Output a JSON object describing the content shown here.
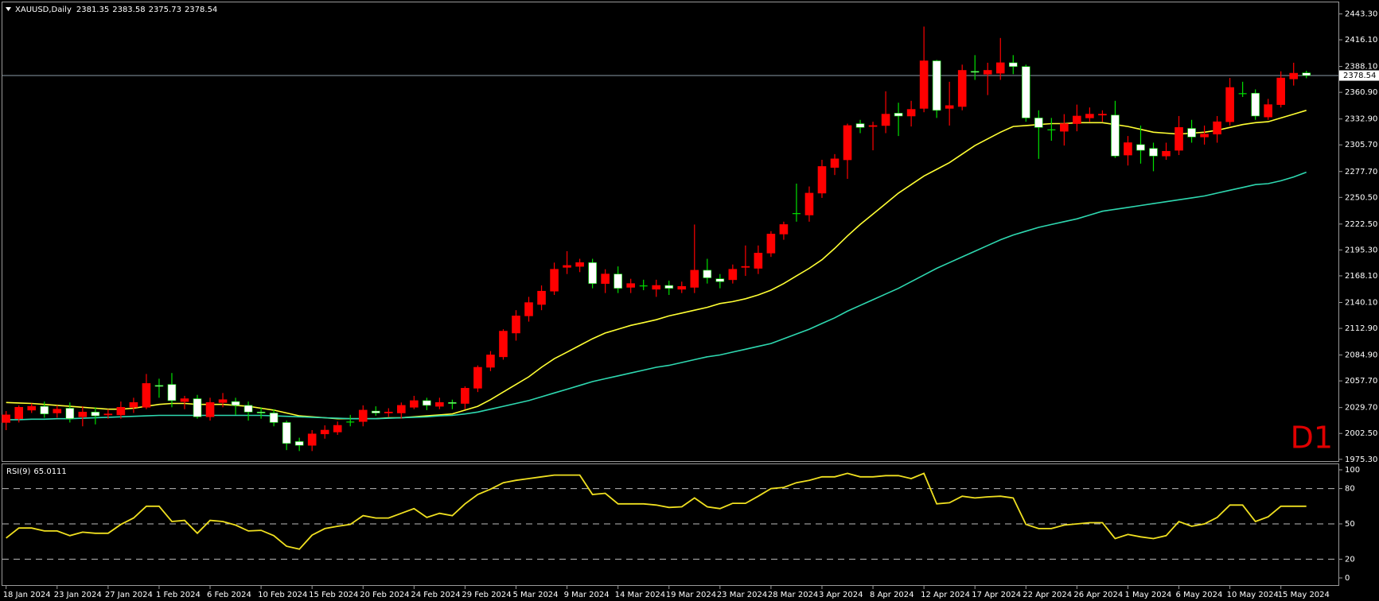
{
  "chart_data": [
    {
      "type": "candlestick",
      "title": "XAUUSD,Daily",
      "timeframe_label": "D1",
      "categories": [
        "18 Jan 2024",
        null,
        null,
        null,
        "23 Jan 2024",
        null,
        null,
        null,
        "27 Jan 2024",
        null,
        null,
        null,
        "1 Feb 2024",
        null,
        null,
        null,
        "6 Feb 2024",
        null,
        null,
        null,
        "10 Feb 2024",
        null,
        null,
        null,
        "15 Feb 2024",
        null,
        null,
        null,
        "20 Feb 2024",
        null,
        null,
        null,
        "24 Feb 2024",
        null,
        null,
        null,
        "29 Feb 2024",
        null,
        null,
        null,
        "5 Mar 2024",
        null,
        null,
        null,
        "9 Mar 2024",
        null,
        null,
        null,
        "14 Mar 2024",
        null,
        null,
        null,
        "19 Mar 2024",
        null,
        null,
        null,
        "23 Mar 2024",
        null,
        null,
        null,
        "28 Mar 2024",
        null,
        null,
        null,
        "3 Apr 2024",
        null,
        null,
        null,
        "8 Apr 2024",
        null,
        null,
        null,
        "12 Apr 2024",
        null,
        null,
        null,
        "17 Apr 2024",
        null,
        null,
        null,
        "22 Apr 2024",
        null,
        null,
        null,
        "26 Apr 2024",
        null,
        null,
        null,
        "1 May 2024",
        null,
        null,
        null,
        "6 May 2024",
        null,
        null,
        null,
        "10 May 2024",
        null,
        null,
        null,
        "15 May 2024",
        null,
        null
      ],
      "open": [
        2014,
        2018,
        2027,
        2031,
        2024,
        2029,
        2020,
        2025,
        2022,
        2022,
        2030,
        2030,
        2053,
        2054,
        2036,
        2039,
        2020,
        2035,
        2036,
        2032,
        2025,
        2024,
        2014,
        1994,
        1990,
        2002,
        2004,
        2015,
        2015,
        2026,
        2024,
        2024,
        2030,
        2037,
        2031,
        2035,
        2034,
        2050,
        2072,
        2083,
        2108,
        2126,
        2138,
        2152,
        2177,
        2178,
        2182,
        2160,
        2170,
        2156,
        2158,
        2154,
        2158,
        2154,
        2156,
        2174,
        2165,
        2164,
        2177,
        2176,
        2192,
        2212,
        2234,
        2232,
        2255,
        2282,
        2290,
        2328,
        2325,
        2326,
        2339,
        2336,
        2344,
        2394,
        2344,
        2346,
        2383,
        2380,
        2381,
        2392,
        2388,
        2334,
        2322,
        2320,
        2328,
        2334,
        2337,
        2337,
        2295,
        2306,
        2302,
        2294,
        2300,
        2323,
        2314,
        2317,
        2330,
        2360,
        2360,
        2335,
        2348,
        2375,
        2381.35
      ],
      "high": [
        2026,
        2032,
        2034,
        2036,
        2032,
        2035,
        2031,
        2030,
        2028,
        2036,
        2040,
        2065,
        2060,
        2066,
        2042,
        2043,
        2040,
        2045,
        2040,
        2036,
        2030,
        2028,
        2016,
        1998,
        2006,
        2011,
        2015,
        2022,
        2032,
        2031,
        2029,
        2035,
        2042,
        2040,
        2040,
        2038,
        2052,
        2074,
        2089,
        2112,
        2132,
        2146,
        2158,
        2182,
        2194,
        2186,
        2186,
        2175,
        2178,
        2165,
        2164,
        2164,
        2163,
        2162,
        2222,
        2186,
        2170,
        2180,
        2200,
        2200,
        2215,
        2225,
        2265,
        2262,
        2290,
        2296,
        2328,
        2332,
        2330,
        2362,
        2350,
        2352,
        2430,
        2395,
        2372,
        2390,
        2400,
        2392,
        2418,
        2400,
        2390,
        2342,
        2334,
        2338,
        2348,
        2345,
        2342,
        2352,
        2315,
        2326,
        2308,
        2308,
        2336,
        2332,
        2326,
        2336,
        2376,
        2372,
        2364,
        2354,
        2383,
        2392,
        2383.58
      ],
      "low": [
        2006,
        2014,
        2024,
        2019,
        2019,
        2014,
        2010,
        2012,
        2018,
        2018,
        2024,
        2028,
        2040,
        2030,
        2028,
        2018,
        2016,
        2030,
        2022,
        2016,
        2018,
        2010,
        1985,
        1984,
        1984,
        1997,
        2001,
        2010,
        2010,
        2021,
        2020,
        2018,
        2028,
        2027,
        2028,
        2028,
        2028,
        2046,
        2068,
        2080,
        2100,
        2120,
        2132,
        2148,
        2170,
        2172,
        2155,
        2150,
        2150,
        2150,
        2153,
        2146,
        2148,
        2150,
        2150,
        2160,
        2155,
        2160,
        2168,
        2170,
        2188,
        2206,
        2225,
        2225,
        2250,
        2274,
        2270,
        2318,
        2300,
        2318,
        2315,
        2325,
        2340,
        2334,
        2326,
        2342,
        2374,
        2358,
        2374,
        2380,
        2330,
        2291,
        2310,
        2305,
        2320,
        2330,
        2330,
        2292,
        2284,
        2286,
        2278,
        2290,
        2295,
        2308,
        2306,
        2308,
        2326,
        2356,
        2332,
        2332,
        2345,
        2368,
        2375.73
      ],
      "close": [
        2022,
        2030,
        2031,
        2023,
        2028,
        2018,
        2025,
        2021,
        2023,
        2030,
        2035,
        2055,
        2052,
        2037,
        2039,
        2020,
        2035,
        2038,
        2032,
        2025,
        2024,
        2014,
        1992,
        1990,
        2002,
        2006,
        2011,
        2015,
        2027,
        2024,
        2025,
        2032,
        2037,
        2032,
        2035,
        2034,
        2050,
        2072,
        2085,
        2110,
        2126,
        2140,
        2152,
        2175,
        2179,
        2182,
        2160,
        2170,
        2155,
        2160,
        2158,
        2158,
        2155,
        2157,
        2174,
        2166,
        2162,
        2175,
        2178,
        2192,
        2212,
        2222,
        2234,
        2255,
        2283,
        2291,
        2326,
        2324,
        2326,
        2338,
        2336,
        2343,
        2394,
        2342,
        2347,
        2384,
        2382,
        2384,
        2392,
        2388,
        2334,
        2324,
        2322,
        2328,
        2336,
        2338,
        2338,
        2294,
        2308,
        2300,
        2294,
        2299,
        2324,
        2314,
        2317,
        2330,
        2366,
        2360,
        2336,
        2348,
        2376,
        2381,
        2378.54
      ],
      "up_color": "#ff0000",
      "down_color": "#ffffff",
      "down_wick_color": "#00e000",
      "price_line_color": "#8a9aa8",
      "moving_averages": [
        {
          "color": "#ffff33",
          "values": [
            2035,
            2034.5,
            2034,
            2033,
            2032,
            2031,
            2030,
            2029,
            2028,
            2028,
            2029,
            2031,
            2033,
            2034,
            2034,
            2033,
            2033,
            2033,
            2032,
            2031,
            2029,
            2027,
            2024,
            2021,
            2020,
            2019,
            2018,
            2018,
            2018,
            2018,
            2019,
            2019,
            2020,
            2021,
            2022,
            2023,
            2027,
            2031,
            2038,
            2046,
            2054,
            2062,
            2072,
            2081,
            2088,
            2095,
            2102,
            2108,
            2112,
            2116,
            2119,
            2122,
            2126,
            2129,
            2132,
            2135,
            2139,
            2141,
            2144,
            2148,
            2153,
            2160,
            2168,
            2176,
            2185,
            2197,
            2210,
            2222,
            2233,
            2244,
            2255,
            2264,
            2273,
            2280,
            2287,
            2296,
            2305,
            2312,
            2319,
            2325,
            2326,
            2327,
            2328,
            2328,
            2329,
            2329,
            2329,
            2327,
            2325,
            2322,
            2319,
            2318,
            2317,
            2318,
            2319,
            2321,
            2324,
            2327,
            2329,
            2330,
            2334,
            2338,
            2342
          ]
        },
        {
          "color": "#2ed8b0",
          "values": [
            2017,
            2017,
            2017.5,
            2017.5,
            2018,
            2018,
            2018.5,
            2019,
            2019.5,
            2020,
            2020.5,
            2021,
            2021.5,
            2021.5,
            2021.5,
            2021.5,
            2021.5,
            2021.5,
            2021.5,
            2021.5,
            2021.5,
            2021,
            2020.5,
            2020,
            2019.5,
            2019,
            2018.5,
            2018,
            2018,
            2018,
            2018.5,
            2019,
            2019.5,
            2020,
            2021,
            2021.5,
            2023,
            2025,
            2028,
            2031,
            2034,
            2037,
            2041,
            2045,
            2049,
            2053,
            2057,
            2060,
            2063,
            2066,
            2069,
            2072,
            2074,
            2077,
            2080,
            2083,
            2085,
            2088,
            2091,
            2094,
            2097,
            2102,
            2107,
            2112,
            2118,
            2124,
            2131,
            2137,
            2143,
            2149,
            2155,
            2162,
            2169,
            2176,
            2182,
            2188,
            2194,
            2200,
            2206,
            2211,
            2215,
            2219,
            2222,
            2225,
            2228,
            2232,
            2236,
            2238,
            2240,
            2242,
            2244,
            2246,
            2248,
            2250,
            2252,
            2255,
            2258,
            2261,
            2264,
            2265,
            2268,
            2272,
            2277
          ]
        }
      ],
      "ylim": [
        1973.45,
        2456.25
      ],
      "yticks": [
        {
          "value": 2443.3,
          "label": "2443.30"
        },
        {
          "value": 2416.1,
          "label": "2416.10"
        },
        {
          "value": 2388.1,
          "label": "2388.10"
        },
        {
          "value": 2360.9,
          "label": "2360.90"
        },
        {
          "value": 2332.9,
          "label": "2332.90"
        },
        {
          "value": 2305.7,
          "label": "2305.70"
        },
        {
          "value": 2277.7,
          "label": "2277.70"
        },
        {
          "value": 2250.5,
          "label": "2250.50"
        },
        {
          "value": 2222.5,
          "label": "2222.50"
        },
        {
          "value": 2195.3,
          "label": "2195.30"
        },
        {
          "value": 2168.1,
          "label": "2168.10"
        },
        {
          "value": 2140.1,
          "label": "2140.10"
        },
        {
          "value": 2112.9,
          "label": "2112.90"
        },
        {
          "value": 2084.9,
          "label": "2084.90"
        },
        {
          "value": 2057.7,
          "label": "2057.70"
        },
        {
          "value": 2029.7,
          "label": "2029.70"
        },
        {
          "value": 2002.5,
          "label": "2002.50"
        },
        {
          "value": 1975.3,
          "label": "1975.30"
        }
      ]
    },
    {
      "type": "line",
      "title": "RSI(9)",
      "color": "#f0e020",
      "values": [
        38,
        46.5,
        46.5,
        44,
        44,
        40,
        43,
        42,
        42,
        49.5,
        55,
        65,
        65,
        52,
        53,
        42,
        53,
        52,
        49,
        44,
        44.5,
        40,
        31,
        28.5,
        40.5,
        46,
        48,
        49.5,
        57,
        55,
        55,
        59,
        63,
        55.5,
        59,
        57,
        67,
        75,
        79.5,
        85,
        87,
        88.5,
        90,
        91.5,
        91.5,
        91.5,
        75,
        76,
        67,
        67,
        67,
        66,
        64,
        64.5,
        72,
        64.5,
        63,
        67.5,
        67.5,
        73.5,
        80,
        81,
        85,
        87,
        90,
        90,
        93,
        90,
        90,
        91,
        91,
        88.5,
        93,
        67,
        68,
        73.5,
        72,
        73,
        73.5,
        72,
        49.5,
        46,
        46,
        49,
        50,
        51,
        51,
        37.5,
        41,
        39,
        37.5,
        40,
        52,
        48,
        50,
        55.5,
        66,
        66,
        52,
        56,
        65,
        65,
        65.0111
      ],
      "ylim": [
        0,
        100
      ],
      "yticks": [
        100,
        80,
        50,
        20,
        0
      ],
      "grid": "dashed"
    }
  ]
}
